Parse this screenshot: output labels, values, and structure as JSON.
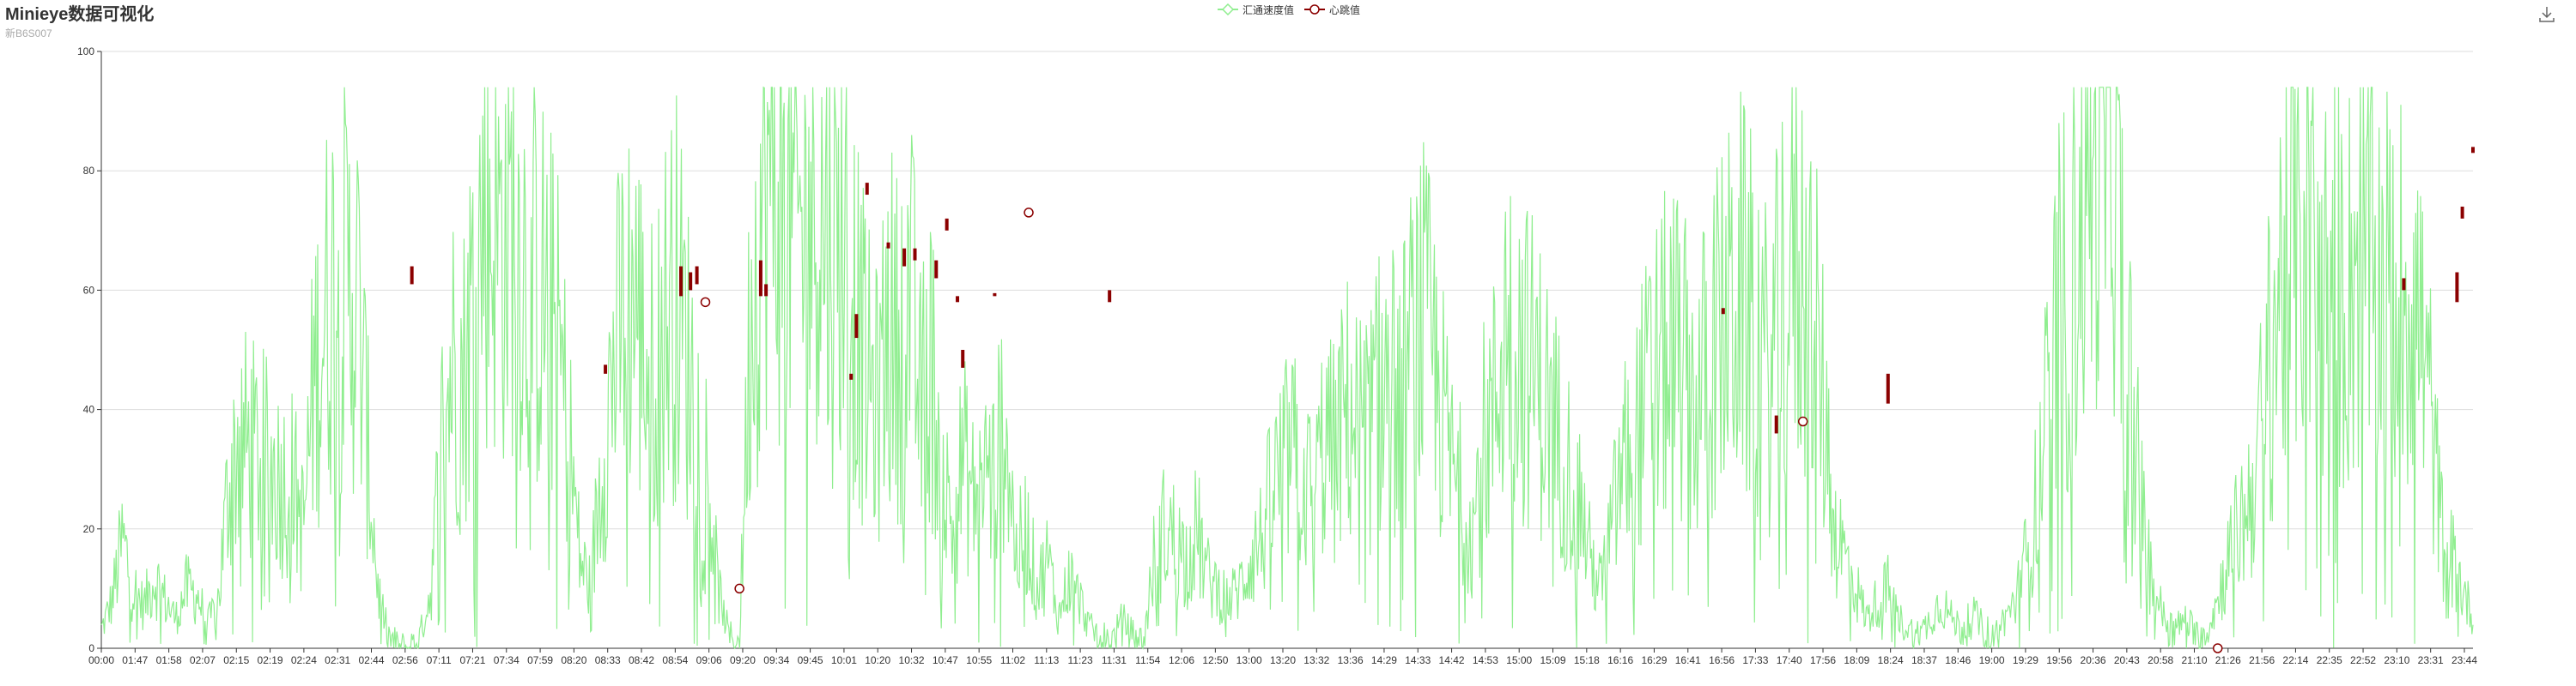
{
  "header": {
    "title": "Minieye数据可视化",
    "subtitle": "新B6S007"
  },
  "toolbox": {
    "icon": "download-icon"
  },
  "legend": {
    "items": [
      {
        "label": "汇通速度值",
        "color": "#90ee90",
        "icon": "diamond"
      },
      {
        "label": "心跳值",
        "color": "#8b0000",
        "icon": "circle"
      }
    ]
  },
  "chart_data": {
    "type": "line",
    "title": "Minieye数据可视化",
    "subtitle": "新B6S007",
    "grid": true,
    "legend_position": "top-center",
    "y_ticks": [
      0,
      20,
      40,
      60,
      80,
      100
    ],
    "ylim": [
      0,
      100
    ],
    "x_tick_labels": [
      "00:00",
      "01:47",
      "01:58",
      "02:07",
      "02:15",
      "02:19",
      "02:24",
      "02:31",
      "02:44",
      "02:56",
      "07:11",
      "07:21",
      "07:34",
      "07:59",
      "08:20",
      "08:33",
      "08:42",
      "08:54",
      "09:06",
      "09:20",
      "09:34",
      "09:45",
      "10:01",
      "10:20",
      "10:32",
      "10:47",
      "10:55",
      "11:02",
      "11:13",
      "11:23",
      "11:31",
      "11:54",
      "12:06",
      "12:50",
      "13:00",
      "13:20",
      "13:32",
      "13:36",
      "14:29",
      "14:33",
      "14:42",
      "14:53",
      "15:00",
      "15:09",
      "15:18",
      "16:16",
      "16:29",
      "16:41",
      "16:56",
      "17:33",
      "17:40",
      "17:56",
      "18:09",
      "18:24",
      "18:37",
      "18:46",
      "19:00",
      "19:29",
      "19:56",
      "20:36",
      "20:43",
      "20:58",
      "21:10",
      "21:26",
      "21:56",
      "22:14",
      "22:35",
      "22:52",
      "23:10",
      "23:31",
      "23:44"
    ],
    "series": [
      {
        "name": "汇通速度值",
        "color": "#90ee90",
        "kind": "line",
        "profile": [
          [
            0,
            3
          ],
          [
            1,
            8
          ],
          [
            2,
            18
          ],
          [
            3,
            10
          ],
          [
            4,
            7
          ],
          [
            5,
            12
          ],
          [
            6,
            8
          ],
          [
            7,
            5
          ],
          [
            8,
            10
          ],
          [
            9,
            9
          ],
          [
            10,
            4
          ],
          [
            11,
            8
          ],
          [
            12,
            28
          ],
          [
            13,
            35
          ],
          [
            14,
            33
          ],
          [
            15,
            32
          ],
          [
            16,
            30
          ],
          [
            17,
            28
          ],
          [
            18,
            28
          ],
          [
            19,
            20
          ],
          [
            20,
            45
          ],
          [
            21,
            55
          ],
          [
            22,
            62
          ],
          [
            23,
            60
          ],
          [
            24,
            60
          ],
          [
            25,
            35
          ],
          [
            26,
            10
          ],
          [
            27,
            2
          ],
          [
            28,
            0
          ],
          [
            29,
            0
          ],
          [
            30,
            2
          ],
          [
            31,
            10
          ],
          [
            32,
            35
          ],
          [
            33,
            48
          ],
          [
            34,
            45
          ],
          [
            35,
            60
          ],
          [
            36,
            72
          ],
          [
            37,
            70
          ],
          [
            38,
            68
          ],
          [
            39,
            72
          ],
          [
            40,
            62
          ],
          [
            41,
            60
          ],
          [
            42,
            58
          ],
          [
            43,
            50
          ],
          [
            44,
            35
          ],
          [
            45,
            15
          ],
          [
            46,
            10
          ],
          [
            47,
            30
          ],
          [
            48,
            45
          ],
          [
            49,
            55
          ],
          [
            50,
            60
          ],
          [
            51,
            50
          ],
          [
            52,
            45
          ],
          [
            53,
            55
          ],
          [
            54,
            60
          ],
          [
            55,
            50
          ],
          [
            56,
            40
          ],
          [
            57,
            30
          ],
          [
            58,
            10
          ],
          [
            59,
            2
          ],
          [
            60,
            1
          ],
          [
            61,
            55
          ],
          [
            62,
            72
          ],
          [
            63,
            78
          ],
          [
            64,
            70
          ],
          [
            65,
            72
          ],
          [
            66,
            68
          ],
          [
            67,
            75
          ],
          [
            68,
            70
          ],
          [
            69,
            65
          ],
          [
            70,
            72
          ],
          [
            71,
            55
          ],
          [
            72,
            45
          ],
          [
            73,
            40
          ],
          [
            74,
            55
          ],
          [
            75,
            50
          ],
          [
            76,
            60
          ],
          [
            77,
            40
          ],
          [
            78,
            48
          ],
          [
            79,
            30
          ],
          [
            80,
            20
          ],
          [
            81,
            32
          ],
          [
            82,
            25
          ],
          [
            83,
            30
          ],
          [
            84,
            28
          ],
          [
            85,
            40
          ],
          [
            86,
            15
          ],
          [
            87,
            20
          ],
          [
            88,
            10
          ],
          [
            89,
            15
          ],
          [
            90,
            5
          ],
          [
            91,
            12
          ],
          [
            92,
            8
          ],
          [
            93,
            3
          ],
          [
            94,
            2
          ],
          [
            95,
            1
          ],
          [
            96,
            5
          ],
          [
            97,
            2
          ],
          [
            98,
            1
          ],
          [
            99,
            15
          ],
          [
            100,
            20
          ],
          [
            101,
            18
          ],
          [
            102,
            15
          ],
          [
            103,
            20
          ],
          [
            104,
            12
          ],
          [
            105,
            10
          ],
          [
            106,
            8
          ],
          [
            107,
            10
          ],
          [
            108,
            15
          ],
          [
            109,
            18
          ],
          [
            110,
            25
          ],
          [
            111,
            30
          ],
          [
            112,
            32
          ],
          [
            113,
            28
          ],
          [
            114,
            25
          ],
          [
            115,
            35
          ],
          [
            116,
            32
          ],
          [
            117,
            40
          ],
          [
            118,
            38
          ],
          [
            119,
            35
          ],
          [
            120,
            42
          ],
          [
            121,
            45
          ],
          [
            122,
            40
          ],
          [
            123,
            48
          ],
          [
            124,
            55
          ],
          [
            125,
            50
          ],
          [
            126,
            40
          ],
          [
            127,
            30
          ],
          [
            128,
            25
          ],
          [
            129,
            20
          ],
          [
            130,
            35
          ],
          [
            131,
            40
          ],
          [
            132,
            55
          ],
          [
            133,
            52
          ],
          [
            134,
            48
          ],
          [
            135,
            45
          ],
          [
            136,
            40
          ],
          [
            137,
            35
          ],
          [
            138,
            30
          ],
          [
            139,
            25
          ],
          [
            140,
            15
          ],
          [
            141,
            10
          ],
          [
            142,
            20
          ],
          [
            143,
            30
          ],
          [
            144,
            35
          ],
          [
            145,
            40
          ],
          [
            146,
            45
          ],
          [
            147,
            48
          ],
          [
            148,
            50
          ],
          [
            149,
            45
          ],
          [
            150,
            40
          ],
          [
            151,
            48
          ],
          [
            152,
            52
          ],
          [
            153,
            55
          ],
          [
            154,
            60
          ],
          [
            155,
            55
          ],
          [
            156,
            50
          ],
          [
            157,
            45
          ],
          [
            158,
            60
          ],
          [
            159,
            65
          ],
          [
            160,
            62
          ],
          [
            161,
            55
          ],
          [
            162,
            40
          ],
          [
            163,
            20
          ],
          [
            164,
            15
          ],
          [
            165,
            10
          ],
          [
            166,
            5
          ],
          [
            167,
            8
          ],
          [
            168,
            10
          ],
          [
            169,
            5
          ],
          [
            170,
            3
          ],
          [
            171,
            2
          ],
          [
            172,
            5
          ],
          [
            173,
            8
          ],
          [
            174,
            5
          ],
          [
            175,
            3
          ],
          [
            176,
            6
          ],
          [
            177,
            3
          ],
          [
            178,
            2
          ],
          [
            179,
            5
          ],
          [
            180,
            8
          ],
          [
            181,
            15
          ],
          [
            182,
            25
          ],
          [
            183,
            40
          ],
          [
            184,
            55
          ],
          [
            185,
            60
          ],
          [
            186,
            70
          ],
          [
            187,
            78
          ],
          [
            188,
            80
          ],
          [
            189,
            85
          ],
          [
            190,
            60
          ],
          [
            191,
            40
          ],
          [
            192,
            20
          ],
          [
            193,
            10
          ],
          [
            194,
            5
          ],
          [
            195,
            3
          ],
          [
            196,
            5
          ],
          [
            197,
            2
          ],
          [
            198,
            3
          ],
          [
            199,
            8
          ],
          [
            200,
            15
          ],
          [
            201,
            20
          ],
          [
            202,
            25
          ],
          [
            203,
            35
          ],
          [
            204,
            50
          ],
          [
            205,
            62
          ],
          [
            206,
            68
          ],
          [
            207,
            72
          ],
          [
            208,
            65
          ],
          [
            209,
            60
          ],
          [
            210,
            62
          ],
          [
            211,
            58
          ],
          [
            212,
            65
          ],
          [
            213,
            68
          ],
          [
            214,
            62
          ],
          [
            215,
            60
          ],
          [
            216,
            58
          ],
          [
            217,
            62
          ],
          [
            218,
            55
          ],
          [
            219,
            40
          ],
          [
            220,
            20
          ],
          [
            221,
            15
          ],
          [
            222,
            10
          ],
          [
            223,
            5
          ]
        ]
      },
      {
        "name": "心跳值",
        "color": "#8b0000",
        "kind": "candlestick",
        "candles": [
          [
            29.2,
            61,
            64
          ],
          [
            47.4,
            46,
            47.5
          ],
          [
            54.5,
            59,
            64
          ],
          [
            55.4,
            60,
            63
          ],
          [
            56.0,
            61,
            64
          ],
          [
            62.0,
            59,
            65
          ],
          [
            62.5,
            59,
            61
          ],
          [
            70.5,
            45,
            46
          ],
          [
            71.0,
            52,
            56
          ],
          [
            72.0,
            76,
            78
          ],
          [
            74.0,
            67,
            68
          ],
          [
            75.5,
            64,
            67
          ],
          [
            76.5,
            65,
            67
          ],
          [
            78.5,
            62,
            65
          ],
          [
            80.5,
            58,
            59
          ],
          [
            81.0,
            47,
            50
          ],
          [
            79.5,
            70,
            72
          ],
          [
            84.0,
            59,
            59.5
          ],
          [
            94.8,
            58,
            60
          ],
          [
            152.5,
            56,
            57
          ],
          [
            157.5,
            36,
            39
          ],
          [
            168.0,
            41,
            46
          ],
          [
            216.5,
            60,
            62
          ],
          [
            221.5,
            58,
            63
          ],
          [
            222.0,
            72,
            74
          ],
          [
            223.0,
            83,
            84
          ]
        ],
        "markers": [
          [
            56.8,
            58
          ],
          [
            60.0,
            10
          ],
          [
            87.2,
            73
          ],
          [
            160.0,
            38
          ],
          [
            199.0,
            0
          ]
        ]
      }
    ]
  }
}
